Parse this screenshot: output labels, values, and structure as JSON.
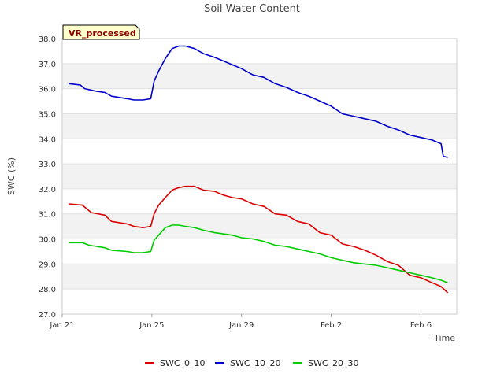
{
  "chart_data": {
    "type": "line",
    "title": "Soil Water Content",
    "xlabel": "Time",
    "ylabel": "SWC (%)",
    "badge": "VR_processed",
    "ylim": [
      27.0,
      38.0
    ],
    "yticks": [
      "27.0",
      "28.0",
      "29.0",
      "30.0",
      "31.0",
      "32.0",
      "33.0",
      "34.0",
      "35.0",
      "36.0",
      "37.0",
      "38.0"
    ],
    "xlim": [
      0,
      17.6
    ],
    "xticks": [
      {
        "value": 0,
        "label": "Jan 21"
      },
      {
        "value": 4,
        "label": "Jan 25"
      },
      {
        "value": 8,
        "label": "Jan 29"
      },
      {
        "value": 12,
        "label": "Feb 2"
      },
      {
        "value": 16,
        "label": "Feb 6"
      }
    ],
    "grid": "alternating horizontal bands",
    "legend_position": "bottom",
    "series": [
      {
        "name": "SWC_0_10",
        "color": "#dd0000",
        "x": [
          0.3,
          0.9,
          1.3,
          1.9,
          2.2,
          2.9,
          3.2,
          3.6,
          3.95,
          4.1,
          4.3,
          4.6,
          4.9,
          5.2,
          5.5,
          5.9,
          6.3,
          6.8,
          7.2,
          7.6,
          8.0,
          8.5,
          9.0,
          9.5,
          10.0,
          10.5,
          11.0,
          11.5,
          12.0,
          12.5,
          13.0,
          13.5,
          14.0,
          14.5,
          15.0,
          15.5,
          16.0,
          16.5,
          16.9,
          17.2
        ],
        "values": [
          31.4,
          31.35,
          31.05,
          30.95,
          30.7,
          30.6,
          30.5,
          30.45,
          30.5,
          31.0,
          31.35,
          31.65,
          31.95,
          32.05,
          32.1,
          32.1,
          31.95,
          31.9,
          31.75,
          31.65,
          31.6,
          31.4,
          31.3,
          31.0,
          30.95,
          30.7,
          30.6,
          30.25,
          30.15,
          29.8,
          29.7,
          29.55,
          29.35,
          29.1,
          28.95,
          28.55,
          28.45,
          28.25,
          28.1,
          27.85
        ]
      },
      {
        "name": "SWC_10_20",
        "color": "#0000cc",
        "x": [
          0.3,
          0.8,
          1.0,
          1.5,
          1.9,
          2.2,
          2.9,
          3.2,
          3.6,
          3.95,
          4.1,
          4.3,
          4.6,
          4.9,
          5.2,
          5.5,
          5.9,
          6.3,
          6.8,
          7.2,
          7.6,
          8.0,
          8.5,
          9.0,
          9.5,
          10.0,
          10.5,
          11.0,
          11.5,
          12.0,
          12.5,
          13.0,
          13.5,
          14.0,
          14.5,
          15.0,
          15.5,
          16.0,
          16.5,
          16.9,
          17.0,
          17.2
        ],
        "values": [
          36.2,
          36.15,
          36.0,
          35.9,
          35.85,
          35.7,
          35.6,
          35.55,
          35.55,
          35.6,
          36.3,
          36.7,
          37.2,
          37.6,
          37.7,
          37.7,
          37.6,
          37.4,
          37.25,
          37.1,
          36.95,
          36.8,
          36.55,
          36.45,
          36.2,
          36.05,
          35.85,
          35.7,
          35.5,
          35.3,
          35.0,
          34.9,
          34.8,
          34.7,
          34.5,
          34.35,
          34.15,
          34.05,
          33.95,
          33.8,
          33.3,
          33.25
        ]
      },
      {
        "name": "SWC_20_30",
        "color": "#00cc00",
        "x": [
          0.3,
          0.9,
          1.2,
          1.9,
          2.2,
          2.9,
          3.2,
          3.6,
          3.95,
          4.1,
          4.3,
          4.6,
          4.9,
          5.2,
          5.5,
          5.9,
          6.3,
          6.8,
          7.2,
          7.6,
          8.0,
          8.5,
          9.0,
          9.5,
          10.0,
          10.5,
          11.0,
          11.5,
          12.0,
          12.5,
          13.0,
          13.5,
          14.0,
          14.5,
          15.0,
          15.5,
          16.0,
          16.5,
          16.9,
          17.2
        ],
        "values": [
          29.85,
          29.85,
          29.75,
          29.65,
          29.55,
          29.5,
          29.45,
          29.45,
          29.5,
          29.95,
          30.15,
          30.45,
          30.55,
          30.55,
          30.5,
          30.45,
          30.35,
          30.25,
          30.2,
          30.15,
          30.05,
          30.0,
          29.9,
          29.75,
          29.7,
          29.6,
          29.5,
          29.4,
          29.25,
          29.15,
          29.05,
          29.0,
          28.95,
          28.85,
          28.75,
          28.65,
          28.55,
          28.45,
          28.35,
          28.25
        ]
      }
    ]
  }
}
